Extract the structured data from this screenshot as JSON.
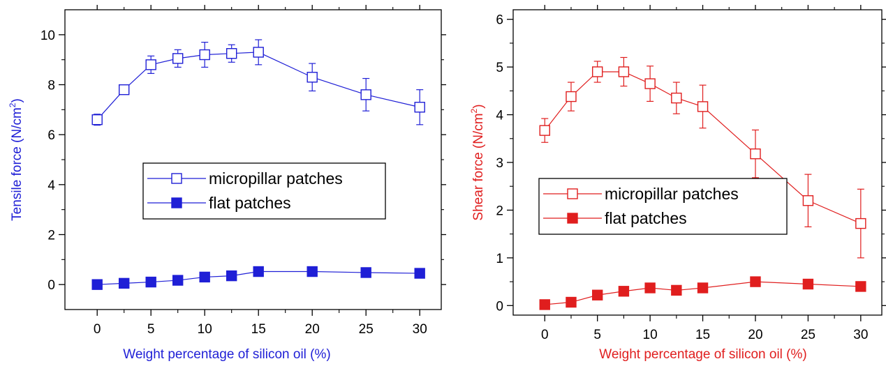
{
  "chart_data": [
    {
      "type": "line",
      "title": "",
      "xlabel": "Weight percentage of silicon oil (%)",
      "ylabel": "Tensile force (N/cm²)",
      "ylabel_parts": {
        "main": "Tensile force (N/cm",
        "sup": "2",
        "close": ")"
      },
      "xlim": [
        -3,
        32
      ],
      "ylim": [
        -1,
        11
      ],
      "xticks": [
        0,
        5,
        10,
        15,
        20,
        25,
        30
      ],
      "yticks": [
        0,
        2,
        4,
        6,
        8,
        10
      ],
      "label_color": "#1f1fd6",
      "grid": false,
      "legend_position": "center",
      "series": [
        {
          "name": "micropillar patches",
          "marker": "open-square",
          "color": "#1f1fd6",
          "x": [
            0,
            2.5,
            5,
            7.5,
            10,
            12.5,
            15,
            20,
            25,
            30
          ],
          "y": [
            6.6,
            7.8,
            8.8,
            9.05,
            9.2,
            9.25,
            9.3,
            8.3,
            7.6,
            7.1
          ],
          "err": [
            0.22,
            0.18,
            0.35,
            0.35,
            0.5,
            0.35,
            0.5,
            0.55,
            0.65,
            0.7
          ]
        },
        {
          "name": "flat patches",
          "marker": "filled-square",
          "color": "#1f1fd6",
          "x": [
            0,
            2.5,
            5,
            7.5,
            10,
            12.5,
            15,
            20,
            25,
            30
          ],
          "y": [
            0.0,
            0.05,
            0.1,
            0.17,
            0.3,
            0.35,
            0.52,
            0.52,
            0.48,
            0.45
          ],
          "err": [
            0,
            0,
            0,
            0,
            0,
            0,
            0,
            0,
            0,
            0
          ]
        }
      ]
    },
    {
      "type": "line",
      "title": "",
      "xlabel": "Weight percentage of silicon oil (%)",
      "ylabel": "Shear force (N/cm²)",
      "ylabel_parts": {
        "main": "Shear force (N/cm",
        "sup": "2",
        "close": ")"
      },
      "xlim": [
        -3,
        32
      ],
      "ylim": [
        -0.2,
        6.2
      ],
      "xticks": [
        0,
        5,
        10,
        15,
        20,
        25,
        30
      ],
      "yticks": [
        0,
        1,
        2,
        3,
        4,
        5,
        6
      ],
      "label_color": "#e01e1e",
      "grid": false,
      "legend_position": "center-right",
      "series": [
        {
          "name": "micropillar patches",
          "marker": "open-square",
          "color": "#e01e1e",
          "x": [
            0,
            2.5,
            5,
            7.5,
            10,
            12.5,
            15,
            20,
            25,
            30
          ],
          "y": [
            3.67,
            4.38,
            4.9,
            4.9,
            4.65,
            4.35,
            4.17,
            3.18,
            2.2,
            1.72
          ],
          "err": [
            0.25,
            0.3,
            0.22,
            0.3,
            0.37,
            0.33,
            0.45,
            0.5,
            0.55,
            0.72
          ]
        },
        {
          "name": "flat patches",
          "marker": "filled-square",
          "color": "#e01e1e",
          "x": [
            0,
            2.5,
            5,
            7.5,
            10,
            12.5,
            15,
            20,
            25,
            30
          ],
          "y": [
            0.02,
            0.07,
            0.22,
            0.3,
            0.37,
            0.32,
            0.37,
            0.5,
            0.45,
            0.4
          ],
          "err": [
            0,
            0,
            0,
            0,
            0,
            0,
            0,
            0,
            0,
            0
          ]
        }
      ]
    }
  ]
}
